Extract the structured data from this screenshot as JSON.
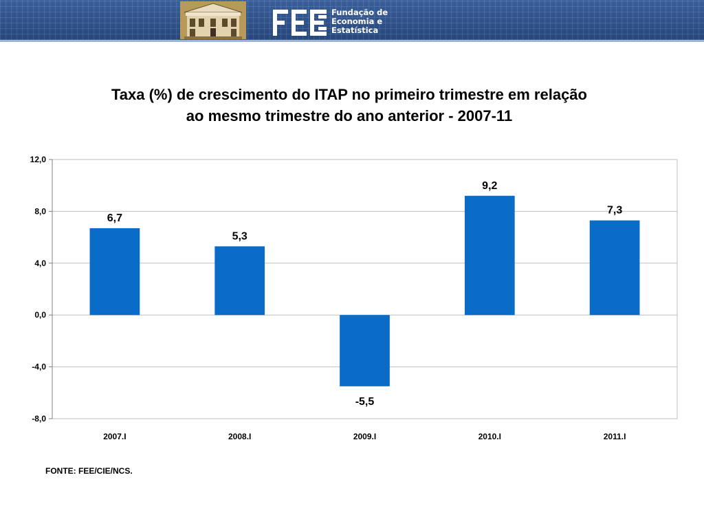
{
  "header": {
    "org_name_lines": [
      "Fundação de",
      "Economia e",
      "Estatística"
    ],
    "logo_icon": "fee-logo-icon",
    "building_icon": "building-icon"
  },
  "colors": {
    "bar": "#0a6cc6",
    "header_bg": "#2d4f86",
    "grid": "#bfbfbf"
  },
  "chart_data": {
    "type": "bar",
    "title_lines": [
      "Taxa (%) de crescimento do ITAP no primeiro trimestre em relação",
      "ao mesmo trimestre do ano anterior - 2007-11"
    ],
    "categories": [
      "2007.I",
      "2008.I",
      "2009.I",
      "2010.I",
      "2011.I"
    ],
    "values": [
      6.7,
      5.3,
      -5.5,
      9.2,
      7.3
    ],
    "data_labels": [
      "6,7",
      "5,3",
      "-5,5",
      "9,2",
      "7,3"
    ],
    "ylim": [
      -8,
      12
    ],
    "yticks": [
      12,
      8,
      4,
      0,
      -4,
      -8
    ],
    "ytick_labels": [
      "12,0",
      "8,0",
      "4,0",
      "0,0",
      "-4,0",
      "-8,0"
    ],
    "xlabel": "",
    "ylabel": "",
    "grid": true,
    "legend": "none"
  },
  "source_text": "FONTE: FEE/CIE/NCS."
}
